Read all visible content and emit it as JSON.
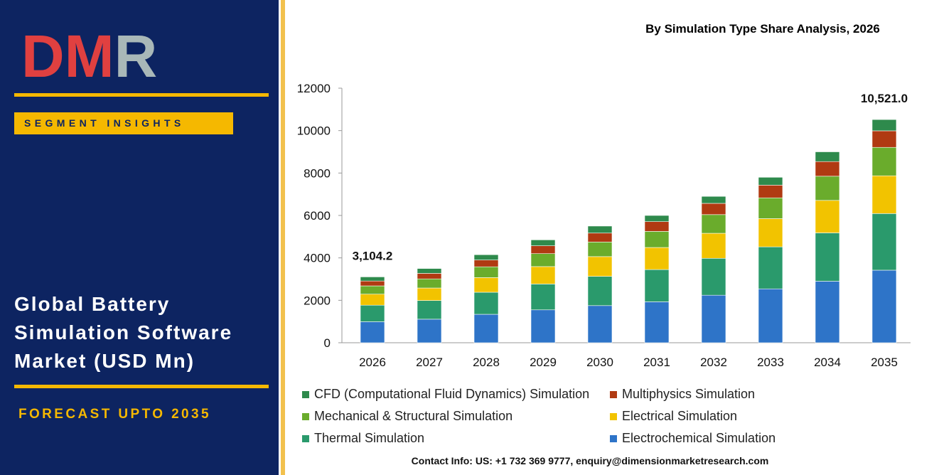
{
  "brand": {
    "logo_text": "DMR",
    "segment_label": "SEGMENT INSIGHTS",
    "market_title": "Global Battery Simulation Software Market (USD Mn)",
    "forecast_label": "FORECAST UPTO 2035",
    "colors": {
      "panel": "#0d2461",
      "accent": "#f5b800",
      "logo_red": "#e04040",
      "logo_grey": "#a9b8b8"
    }
  },
  "contact": "Contact Info: US: +1 732 369 9777, enquiry@dimensionmarketresearch.com",
  "chart_data": {
    "type": "bar",
    "stacked": true,
    "title": "By Simulation Type Share Analysis, 2026",
    "categories": [
      "2026",
      "2027",
      "2028",
      "2029",
      "2030",
      "2031",
      "2032",
      "2033",
      "2034",
      "2035"
    ],
    "ylim": [
      0,
      12000
    ],
    "yticks": [
      0,
      2000,
      4000,
      6000,
      8000,
      10000,
      12000
    ],
    "grid": false,
    "legend_position": "bottom",
    "series": [
      {
        "name": "Electrochemical Simulation",
        "color": "#2e74c8",
        "values": [
          990,
          1110,
          1340,
          1550,
          1750,
          1930,
          2240,
          2540,
          2900,
          3420
        ]
      },
      {
        "name": "Thermal Simulation",
        "color": "#2a9a6c",
        "values": [
          780,
          880,
          1040,
          1220,
          1380,
          1520,
          1740,
          1980,
          2280,
          2670
        ]
      },
      {
        "name": "Electrical Simulation",
        "color": "#f2c300",
        "values": [
          520,
          590,
          690,
          820,
          930,
          1040,
          1180,
          1330,
          1530,
          1780
        ]
      },
      {
        "name": "Mechanical & Structural Simulation",
        "color": "#6aac2c",
        "values": [
          390,
          430,
          510,
          610,
          690,
          760,
          880,
          980,
          1140,
          1340
        ]
      },
      {
        "name": "Multiphysics Simulation",
        "color": "#b03a12",
        "values": [
          230,
          260,
          320,
          370,
          420,
          460,
          530,
          600,
          690,
          780
        ]
      },
      {
        "name": "CFD (Computational Fluid Dynamics) Simulation",
        "color": "#2e8a4c",
        "values": [
          194.2,
          230,
          250,
          280,
          330,
          290,
          330,
          370,
          460,
          531
        ]
      }
    ],
    "annotations": [
      {
        "category": "2026",
        "label": "3,104.2"
      },
      {
        "category": "2035",
        "label": "10,521.0"
      }
    ]
  },
  "legend_layout": [
    [
      "CFD (Computational Fluid Dynamics) Simulation",
      "Multiphysics Simulation"
    ],
    [
      "Mechanical & Structural Simulation",
      "Electrical Simulation"
    ],
    [
      "Thermal Simulation",
      "Electrochemical Simulation"
    ]
  ]
}
